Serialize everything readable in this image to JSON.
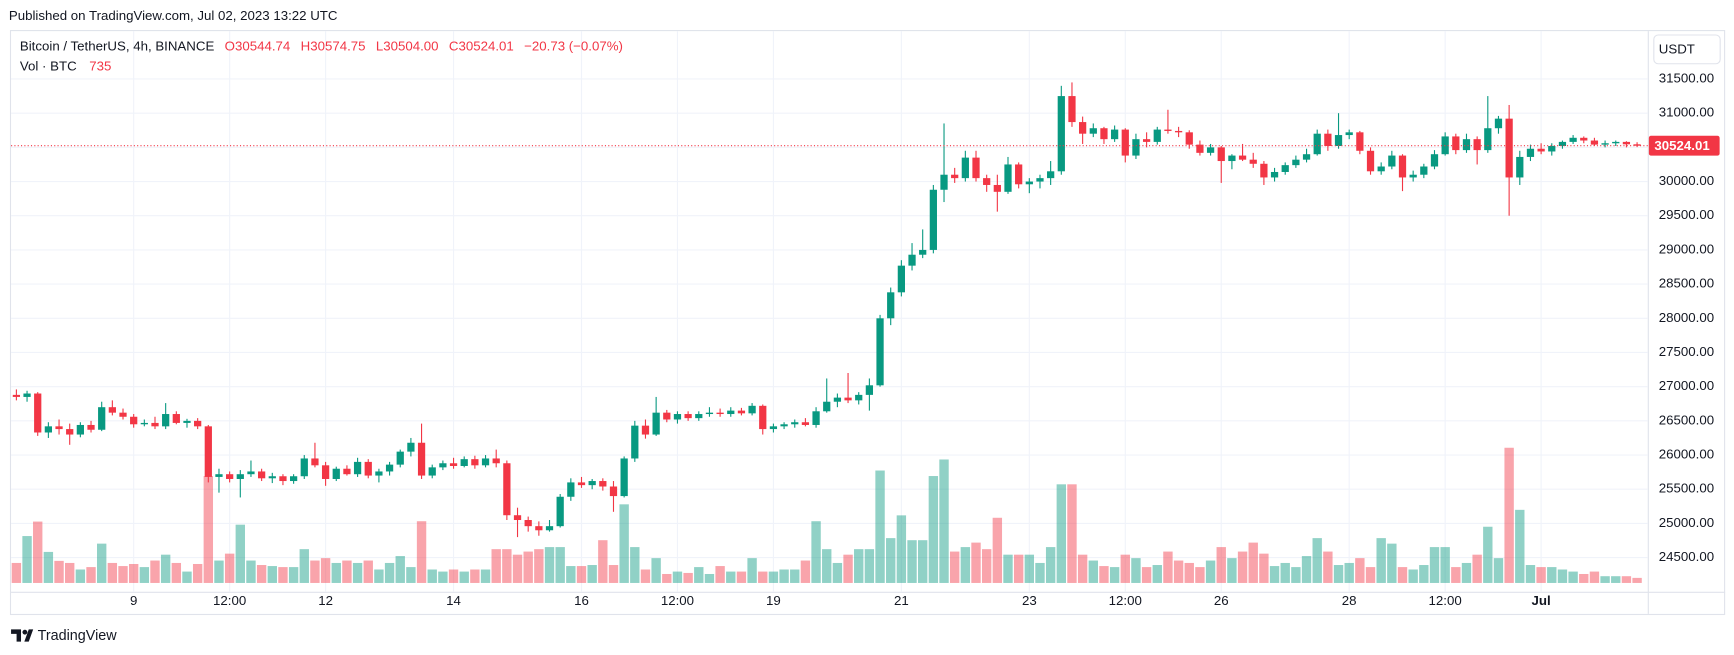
{
  "header": "Published on TradingView.com, Jul 02, 2023 13:22 UTC",
  "footer": "TradingView",
  "chart_data": {
    "type": "candlestick",
    "title": "Bitcoin / TetherUS, 4h, BINANCE",
    "legend_values": [
      "O30544.74",
      "H30574.75",
      "L30504.00",
      "C30524.01",
      "−20.73 (−0.07%)"
    ],
    "volume_title": "Vol · BTC",
    "currency": "USDT",
    "up_color": "#089981",
    "down_color": "#f23645",
    "grid": true,
    "ylim": [
      24000,
      32200
    ],
    "yticks": [
      {
        "value": 24500,
        "label": "24500.00"
      },
      {
        "value": 25000,
        "label": "25000.00"
      },
      {
        "value": 25500,
        "label": "25500.00"
      },
      {
        "value": 26000,
        "label": "26000.00"
      },
      {
        "value": 26500,
        "label": "26500.00"
      },
      {
        "value": 27000,
        "label": "27000.00"
      },
      {
        "value": 27500,
        "label": "27500.00"
      },
      {
        "value": 28000,
        "label": "28000.00"
      },
      {
        "value": 28500,
        "label": "28500.00"
      },
      {
        "value": 29000,
        "label": "29000.00"
      },
      {
        "value": 29500,
        "label": "29500.00"
      },
      {
        "value": 30000,
        "label": "30000.00"
      },
      {
        "value": 30500,
        "label": "30500.00"
      },
      {
        "value": 31000,
        "label": "31000.00"
      },
      {
        "value": 31500,
        "label": "31500.00"
      }
    ],
    "volume_ylim": [
      0,
      80000
    ],
    "categories": [
      null,
      null,
      null,
      null,
      null,
      null,
      null,
      null,
      null,
      null,
      null,
      "9",
      null,
      null,
      null,
      null,
      null,
      null,
      null,
      null,
      "12:00",
      null,
      null,
      null,
      null,
      null,
      null,
      null,
      null,
      "12",
      null,
      null,
      null,
      null,
      null,
      null,
      null,
      null,
      null,
      null,
      null,
      "14",
      null,
      null,
      null,
      null,
      null,
      null,
      null,
      null,
      null,
      null,
      null,
      "16",
      null,
      null,
      null,
      null,
      null,
      null,
      null,
      null,
      "12:00",
      null,
      null,
      null,
      null,
      null,
      null,
      null,
      null,
      "19",
      null,
      null,
      null,
      null,
      null,
      null,
      null,
      null,
      null,
      null,
      null,
      "21",
      null,
      null,
      null,
      null,
      null,
      null,
      null,
      null,
      null,
      null,
      null,
      "23",
      null,
      null,
      null,
      null,
      null,
      null,
      null,
      null,
      "12:00",
      null,
      null,
      null,
      null,
      null,
      null,
      null,
      null,
      "26",
      null,
      null,
      null,
      null,
      null,
      null,
      null,
      null,
      null,
      null,
      null,
      "28",
      null,
      null,
      null,
      null,
      null,
      null,
      null,
      null,
      "12:00",
      null,
      null,
      null,
      null,
      null,
      null,
      null,
      null,
      "Jul",
      null,
      null,
      null,
      null,
      null,
      null,
      null,
      null,
      null
    ],
    "ohlc": [
      [
        26880,
        26960,
        26800,
        26850
      ],
      [
        26850,
        26940,
        26780,
        26900
      ],
      [
        26900,
        26920,
        26280,
        26330
      ],
      [
        26330,
        26480,
        26250,
        26420
      ],
      [
        26420,
        26520,
        26300,
        26380
      ],
      [
        26380,
        26460,
        26150,
        26300
      ],
      [
        26300,
        26480,
        26260,
        26440
      ],
      [
        26440,
        26500,
        26330,
        26370
      ],
      [
        26370,
        26780,
        26350,
        26700
      ],
      [
        26700,
        26800,
        26580,
        26620
      ],
      [
        26620,
        26680,
        26520,
        26560
      ],
      [
        26560,
        26600,
        26400,
        26450
      ],
      [
        26450,
        26520,
        26420,
        26470
      ],
      [
        26470,
        26560,
        26380,
        26420
      ],
      [
        26420,
        26760,
        26380,
        26600
      ],
      [
        26600,
        26640,
        26450,
        26470
      ],
      [
        26470,
        26530,
        26400,
        26500
      ],
      [
        26500,
        26540,
        26380,
        26420
      ],
      [
        26420,
        26440,
        25600,
        25680
      ],
      [
        25680,
        25800,
        25450,
        25720
      ],
      [
        25720,
        25760,
        25600,
        25650
      ],
      [
        25650,
        25780,
        25380,
        25720
      ],
      [
        25720,
        25920,
        25680,
        25760
      ],
      [
        25760,
        25800,
        25620,
        25660
      ],
      [
        25660,
        25740,
        25590,
        25690
      ],
      [
        25690,
        25720,
        25560,
        25620
      ],
      [
        25620,
        25720,
        25580,
        25690
      ],
      [
        25690,
        26000,
        25650,
        25950
      ],
      [
        25950,
        26180,
        25820,
        25850
      ],
      [
        25850,
        25900,
        25550,
        25650
      ],
      [
        25650,
        25830,
        25620,
        25800
      ],
      [
        25800,
        25850,
        25700,
        25720
      ],
      [
        25720,
        25960,
        25680,
        25900
      ],
      [
        25900,
        25940,
        25660,
        25700
      ],
      [
        25700,
        25800,
        25600,
        25760
      ],
      [
        25760,
        25900,
        25700,
        25860
      ],
      [
        25860,
        26080,
        25820,
        26050
      ],
      [
        26050,
        26250,
        25980,
        26180
      ],
      [
        26180,
        26460,
        25650,
        25700
      ],
      [
        25700,
        25860,
        25660,
        25820
      ],
      [
        25820,
        25920,
        25780,
        25880
      ],
      [
        25880,
        25960,
        25800,
        25840
      ],
      [
        25840,
        25980,
        25820,
        25940
      ],
      [
        25940,
        25990,
        25800,
        25850
      ],
      [
        25850,
        26000,
        25820,
        25950
      ],
      [
        25950,
        26080,
        25820,
        25880
      ],
      [
        25880,
        25920,
        25050,
        25120
      ],
      [
        25120,
        25230,
        24800,
        25050
      ],
      [
        25050,
        25100,
        24880,
        24960
      ],
      [
        24960,
        25030,
        24820,
        24900
      ],
      [
        24900,
        25050,
        24880,
        24960
      ],
      [
        24960,
        25430,
        24940,
        25390
      ],
      [
        25390,
        25660,
        25330,
        25600
      ],
      [
        25600,
        25680,
        25520,
        25560
      ],
      [
        25560,
        25650,
        25500,
        25620
      ],
      [
        25620,
        25660,
        25480,
        25540
      ],
      [
        25540,
        25620,
        25170,
        25400
      ],
      [
        25400,
        25980,
        25380,
        25950
      ],
      [
        25950,
        26500,
        25900,
        26430
      ],
      [
        26430,
        26520,
        26240,
        26300
      ],
      [
        26300,
        26850,
        26280,
        26620
      ],
      [
        26620,
        26660,
        26480,
        26520
      ],
      [
        26520,
        26640,
        26460,
        26600
      ],
      [
        26600,
        26640,
        26500,
        26540
      ],
      [
        26540,
        26640,
        26500,
        26600
      ],
      [
        26600,
        26700,
        26560,
        26620
      ],
      [
        26620,
        26680,
        26560,
        26600
      ],
      [
        26600,
        26700,
        26560,
        26650
      ],
      [
        26650,
        26690,
        26580,
        26610
      ],
      [
        26610,
        26760,
        26580,
        26720
      ],
      [
        26720,
        26740,
        26300,
        26380
      ],
      [
        26380,
        26460,
        26330,
        26420
      ],
      [
        26420,
        26480,
        26380,
        26450
      ],
      [
        26450,
        26520,
        26400,
        26480
      ],
      [
        26480,
        26540,
        26420,
        26440
      ],
      [
        26440,
        26700,
        26400,
        26640
      ],
      [
        26640,
        27120,
        26620,
        26780
      ],
      [
        26780,
        26900,
        26700,
        26840
      ],
      [
        26840,
        27200,
        26760,
        26800
      ],
      [
        26800,
        26920,
        26740,
        26880
      ],
      [
        26880,
        27120,
        26650,
        27020
      ],
      [
        27020,
        28050,
        27000,
        28000
      ],
      [
        28000,
        28450,
        27900,
        28380
      ],
      [
        28380,
        28850,
        28320,
        28770
      ],
      [
        28770,
        29100,
        28700,
        28930
      ],
      [
        28930,
        29300,
        28880,
        29000
      ],
      [
        29000,
        29950,
        28950,
        29880
      ],
      [
        29880,
        30850,
        29700,
        30100
      ],
      [
        30100,
        30200,
        29980,
        30050
      ],
      [
        30050,
        30450,
        30000,
        30350
      ],
      [
        30350,
        30450,
        30000,
        30050
      ],
      [
        30050,
        30100,
        29850,
        29950
      ],
      [
        29950,
        30100,
        29560,
        29850
      ],
      [
        29850,
        30360,
        29820,
        30250
      ],
      [
        30250,
        30280,
        29900,
        29960
      ],
      [
        29960,
        30050,
        29830,
        30000
      ],
      [
        30000,
        30100,
        29900,
        30050
      ],
      [
        30050,
        30300,
        29950,
        30150
      ],
      [
        30150,
        31400,
        30100,
        31250
      ],
      [
        31250,
        31450,
        30800,
        30870
      ],
      [
        30870,
        30950,
        30550,
        30700
      ],
      [
        30700,
        30850,
        30650,
        30780
      ],
      [
        30780,
        30800,
        30550,
        30620
      ],
      [
        30620,
        30820,
        30580,
        30760
      ],
      [
        30760,
        30780,
        30280,
        30380
      ],
      [
        30380,
        30700,
        30330,
        30620
      ],
      [
        30620,
        30720,
        30500,
        30580
      ],
      [
        30580,
        30800,
        30540,
        30760
      ],
      [
        30760,
        31050,
        30700,
        30740
      ],
      [
        30740,
        30800,
        30650,
        30720
      ],
      [
        30720,
        30750,
        30480,
        30540
      ],
      [
        30540,
        30600,
        30380,
        30420
      ],
      [
        30420,
        30550,
        30380,
        30500
      ],
      [
        30500,
        30520,
        29980,
        30300
      ],
      [
        30300,
        30400,
        30180,
        30380
      ],
      [
        30380,
        30550,
        30300,
        30320
      ],
      [
        30320,
        30420,
        30200,
        30260
      ],
      [
        30260,
        30300,
        29950,
        30060
      ],
      [
        30060,
        30200,
        30000,
        30140
      ],
      [
        30140,
        30280,
        30100,
        30240
      ],
      [
        30240,
        30380,
        30200,
        30320
      ],
      [
        30320,
        30480,
        30280,
        30400
      ],
      [
        30400,
        30760,
        30380,
        30700
      ],
      [
        30700,
        30760,
        30450,
        30520
      ],
      [
        30520,
        31000,
        30480,
        30680
      ],
      [
        30680,
        30760,
        30620,
        30720
      ],
      [
        30720,
        30740,
        30400,
        30450
      ],
      [
        30450,
        30500,
        30100,
        30150
      ],
      [
        30150,
        30280,
        30100,
        30220
      ],
      [
        30220,
        30450,
        30180,
        30380
      ],
      [
        30380,
        30400,
        29860,
        30060
      ],
      [
        30060,
        30160,
        30000,
        30100
      ],
      [
        30100,
        30260,
        30050,
        30220
      ],
      [
        30220,
        30460,
        30180,
        30400
      ],
      [
        30400,
        30720,
        30380,
        30660
      ],
      [
        30660,
        30700,
        30400,
        30460
      ],
      [
        30460,
        30700,
        30420,
        30620
      ],
      [
        30620,
        30660,
        30250,
        30460
      ],
      [
        30460,
        31250,
        30420,
        30780
      ],
      [
        30780,
        30960,
        30700,
        30920
      ],
      [
        30920,
        31120,
        29500,
        30060
      ],
      [
        30060,
        30450,
        29950,
        30360
      ],
      [
        30360,
        30540,
        30300,
        30480
      ],
      [
        30480,
        30560,
        30400,
        30440
      ],
      [
        30440,
        30560,
        30380,
        30520
      ],
      [
        30520,
        30600,
        30480,
        30580
      ],
      [
        30580,
        30680,
        30550,
        30640
      ],
      [
        30640,
        30660,
        30560,
        30600
      ],
      [
        30600,
        30640,
        30520,
        30540
      ],
      [
        30540,
        30600,
        30500,
        30560
      ],
      [
        30560,
        30600,
        30520,
        30580
      ],
      [
        30580,
        30590,
        30500,
        30544.74
      ],
      [
        30544.74,
        30574.75,
        30504,
        30524.01
      ]
    ],
    "volume": [
      2900,
      6800,
      8900,
      4500,
      3200,
      2900,
      1950,
      2300,
      5700,
      2900,
      2450,
      2750,
      2300,
      3250,
      4100,
      2900,
      1650,
      2750,
      15500,
      3250,
      4250,
      8450,
      3250,
      2600,
      2450,
      2300,
      2300,
      4900,
      3250,
      3600,
      2900,
      3250,
      2900,
      3250,
      1950,
      2900,
      3900,
      2300,
      8950,
      1950,
      1650,
      1950,
      1650,
      1950,
      1950,
      4900,
      4900,
      4100,
      4550,
      4900,
      5200,
      5200,
      2450,
      2450,
      2600,
      6200,
      2600,
      11400,
      5200,
      1950,
      3600,
      1300,
      1650,
      1450,
      2300,
      1300,
      2450,
      1650,
      1650,
      3600,
      1650,
      1650,
      1950,
      1950,
      3250,
      8950,
      4900,
      2900,
      4100,
      4900,
      4900,
      16300,
      6500,
      9800,
      6200,
      6200,
      15500,
      17900,
      4550,
      5200,
      5850,
      4900,
      9450,
      4100,
      4100,
      4100,
      2900,
      5200,
      14300,
      14300,
      4100,
      3250,
      2450,
      2300,
      4100,
      3600,
      2300,
      2600,
      4550,
      3250,
      2900,
      2300,
      3250,
      5200,
      3600,
      4550,
      5850,
      4250,
      2450,
      2900,
      2300,
      3900,
      6500,
      4550,
      2600,
      2900,
      3600,
      2300,
      6500,
      5700,
      2300,
      1950,
      2600,
      5200,
      5200,
      2300,
      2900,
      4100,
      8150,
      3600,
      19600,
      10600,
      2600,
      2300,
      2300,
      1950,
      1650,
      1300,
      1650,
      980,
      980,
      980,
      735
    ]
  }
}
